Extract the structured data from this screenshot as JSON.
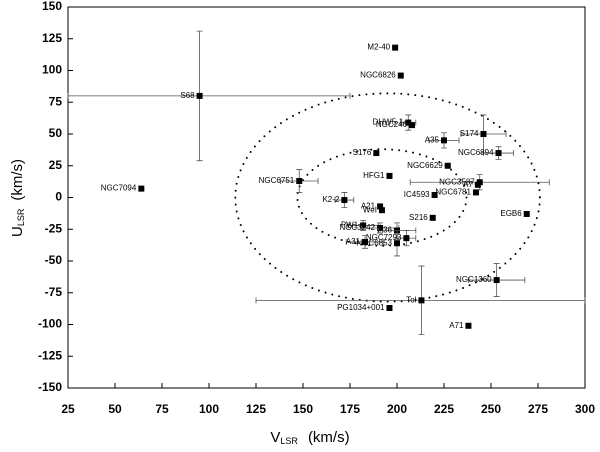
{
  "chart_data": {
    "type": "scatter",
    "xlabel": {
      "main": "V",
      "sub": "LSR",
      "unit": "(km/s)"
    },
    "ylabel": {
      "main": "U",
      "sub": "LSR",
      "unit": "(km/s)"
    },
    "xlim": [
      25,
      300
    ],
    "ylim": [
      -150,
      150
    ],
    "xticks": [
      25,
      50,
      75,
      100,
      125,
      150,
      175,
      200,
      225,
      250,
      275,
      300
    ],
    "yticks": [
      -150,
      -125,
      -100,
      -75,
      -50,
      -25,
      0,
      25,
      50,
      75,
      100,
      125,
      150
    ],
    "color": "#000000",
    "labels": [
      "M2-40",
      "NGC6826",
      "S68",
      "NGC7094",
      "DHW5-1",
      "NGC246",
      "S174",
      "A35",
      "NGC6894",
      "S176",
      "NGC6629",
      "HFG1",
      "NGC6751",
      "NGC3587",
      "A7",
      "NGC6781",
      "IC4593",
      "K2-2",
      "A21",
      "WeI",
      "EGB6",
      "S216",
      "PW1",
      "NGC3242",
      "A36",
      "NGC7293",
      "A31",
      "NGC6853",
      "NGC1360",
      "Tol",
      "PG1034+001",
      "A71"
    ],
    "x": [
      199,
      202,
      95,
      64,
      206,
      208,
      246,
      225,
      254,
      189,
      227,
      196,
      148,
      244,
      243,
      242,
      220,
      172,
      191,
      192,
      269,
      219,
      182,
      191,
      200,
      205,
      183,
      200,
      253,
      213,
      196,
      238
    ],
    "y": [
      118,
      96,
      80,
      7,
      59,
      57,
      50,
      45,
      35,
      35,
      25,
      17,
      13,
      12,
      10,
      4,
      2,
      -2,
      -7,
      -10,
      -13,
      -16,
      -22,
      -24,
      -26,
      -32,
      -35,
      -36,
      -65,
      -81,
      -87,
      -101
    ],
    "xerr": [
      null,
      null,
      80,
      null,
      4,
      null,
      12,
      8,
      8,
      null,
      null,
      null,
      10,
      37,
      null,
      null,
      null,
      5,
      null,
      null,
      null,
      null,
      8,
      10,
      10,
      5,
      10,
      null,
      15,
      88,
      null,
      null
    ],
    "yerr": [
      null,
      null,
      51,
      null,
      6,
      null,
      15,
      6,
      5,
      null,
      null,
      null,
      9,
      6,
      null,
      null,
      null,
      6,
      null,
      null,
      null,
      null,
      4,
      4,
      6,
      6,
      5,
      10,
      13,
      27,
      null,
      null
    ],
    "curves": [
      {
        "center": [
          195,
          0
        ],
        "radii": [
          81,
          82
        ]
      },
      {
        "center": [
          192,
          0
        ],
        "radii": [
          45,
          38
        ]
      }
    ]
  }
}
